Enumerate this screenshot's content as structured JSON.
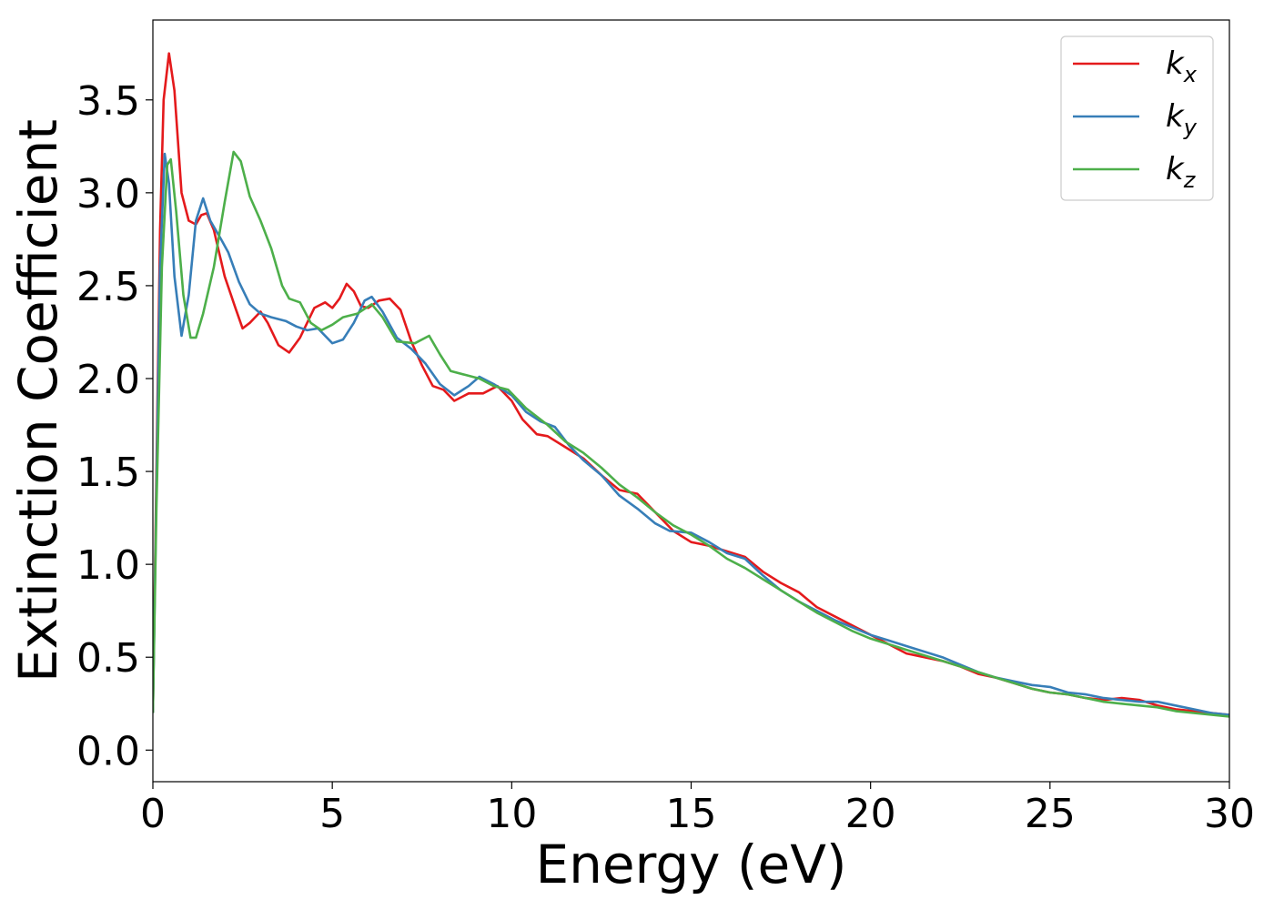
{
  "chart_data": {
    "type": "line",
    "title": "",
    "xlabel": "Energy (eV)",
    "ylabel": "Extinction Coefficient",
    "xlim": [
      0,
      30
    ],
    "ylim": [
      -0.17,
      3.93
    ],
    "xticks": [
      0,
      5,
      10,
      15,
      20,
      25,
      30
    ],
    "xtick_labels": [
      "0",
      "5",
      "10",
      "15",
      "20",
      "25",
      "30"
    ],
    "yticks": [
      0.0,
      0.5,
      1.0,
      1.5,
      2.0,
      2.5,
      3.0,
      3.5
    ],
    "ytick_labels": [
      "0.0",
      "0.5",
      "1.0",
      "1.5",
      "2.0",
      "2.5",
      "3.0",
      "3.5"
    ],
    "grid": false,
    "legend_position": "top-right",
    "series": [
      {
        "name": "k",
        "subscript": "x",
        "color": "#e41a1c",
        "points": [
          [
            0,
            0.2
          ],
          [
            0.1,
            1.5
          ],
          [
            0.2,
            2.8
          ],
          [
            0.3,
            3.5
          ],
          [
            0.45,
            3.75
          ],
          [
            0.6,
            3.55
          ],
          [
            0.8,
            3.0
          ],
          [
            1.0,
            2.85
          ],
          [
            1.2,
            2.83
          ],
          [
            1.35,
            2.88
          ],
          [
            1.5,
            2.89
          ],
          [
            1.7,
            2.8
          ],
          [
            2.0,
            2.55
          ],
          [
            2.3,
            2.38
          ],
          [
            2.5,
            2.27
          ],
          [
            2.7,
            2.3
          ],
          [
            3.0,
            2.36
          ],
          [
            3.2,
            2.3
          ],
          [
            3.5,
            2.18
          ],
          [
            3.8,
            2.14
          ],
          [
            4.1,
            2.22
          ],
          [
            4.5,
            2.38
          ],
          [
            4.8,
            2.41
          ],
          [
            5.0,
            2.38
          ],
          [
            5.2,
            2.43
          ],
          [
            5.4,
            2.51
          ],
          [
            5.6,
            2.47
          ],
          [
            5.8,
            2.39
          ],
          [
            6.0,
            2.38
          ],
          [
            6.3,
            2.42
          ],
          [
            6.6,
            2.43
          ],
          [
            6.9,
            2.37
          ],
          [
            7.2,
            2.2
          ],
          [
            7.5,
            2.07
          ],
          [
            7.8,
            1.96
          ],
          [
            8.1,
            1.94
          ],
          [
            8.4,
            1.88
          ],
          [
            8.8,
            1.92
          ],
          [
            9.2,
            1.92
          ],
          [
            9.6,
            1.96
          ],
          [
            10.0,
            1.88
          ],
          [
            10.3,
            1.78
          ],
          [
            10.7,
            1.7
          ],
          [
            11.0,
            1.69
          ],
          [
            11.5,
            1.63
          ],
          [
            12.0,
            1.57
          ],
          [
            12.5,
            1.48
          ],
          [
            13.0,
            1.4
          ],
          [
            13.5,
            1.38
          ],
          [
            14.0,
            1.28
          ],
          [
            14.5,
            1.18
          ],
          [
            15.0,
            1.12
          ],
          [
            15.5,
            1.1
          ],
          [
            16.0,
            1.07
          ],
          [
            16.5,
            1.04
          ],
          [
            17.0,
            0.96
          ],
          [
            17.5,
            0.9
          ],
          [
            18.0,
            0.85
          ],
          [
            18.5,
            0.77
          ],
          [
            19.0,
            0.72
          ],
          [
            19.5,
            0.67
          ],
          [
            20.0,
            0.62
          ],
          [
            20.5,
            0.57
          ],
          [
            21.0,
            0.52
          ],
          [
            21.5,
            0.5
          ],
          [
            22.0,
            0.48
          ],
          [
            22.5,
            0.45
          ],
          [
            23.0,
            0.41
          ],
          [
            23.5,
            0.39
          ],
          [
            24.0,
            0.36
          ],
          [
            24.5,
            0.33
          ],
          [
            25.0,
            0.31
          ],
          [
            25.5,
            0.3
          ],
          [
            26.0,
            0.28
          ],
          [
            26.5,
            0.27
          ],
          [
            27.0,
            0.28
          ],
          [
            27.5,
            0.27
          ],
          [
            28.0,
            0.24
          ],
          [
            28.5,
            0.22
          ],
          [
            29.0,
            0.21
          ],
          [
            29.5,
            0.2
          ],
          [
            30.0,
            0.19
          ]
        ]
      },
      {
        "name": "k",
        "subscript": "y",
        "color": "#377eb8",
        "points": [
          [
            0,
            0.2
          ],
          [
            0.1,
            1.4
          ],
          [
            0.2,
            2.6
          ],
          [
            0.33,
            3.21
          ],
          [
            0.45,
            3.05
          ],
          [
            0.6,
            2.55
          ],
          [
            0.8,
            2.23
          ],
          [
            1.0,
            2.45
          ],
          [
            1.2,
            2.85
          ],
          [
            1.4,
            2.97
          ],
          [
            1.6,
            2.85
          ],
          [
            1.9,
            2.75
          ],
          [
            2.1,
            2.68
          ],
          [
            2.4,
            2.52
          ],
          [
            2.7,
            2.4
          ],
          [
            3.0,
            2.35
          ],
          [
            3.3,
            2.33
          ],
          [
            3.7,
            2.31
          ],
          [
            4.0,
            2.28
          ],
          [
            4.3,
            2.26
          ],
          [
            4.6,
            2.27
          ],
          [
            5.0,
            2.19
          ],
          [
            5.3,
            2.21
          ],
          [
            5.6,
            2.3
          ],
          [
            5.9,
            2.42
          ],
          [
            6.1,
            2.44
          ],
          [
            6.4,
            2.36
          ],
          [
            6.8,
            2.22
          ],
          [
            7.2,
            2.16
          ],
          [
            7.6,
            2.08
          ],
          [
            8.0,
            1.97
          ],
          [
            8.4,
            1.91
          ],
          [
            8.8,
            1.96
          ],
          [
            9.1,
            2.01
          ],
          [
            9.5,
            1.97
          ],
          [
            10.0,
            1.91
          ],
          [
            10.4,
            1.82
          ],
          [
            10.8,
            1.77
          ],
          [
            11.2,
            1.74
          ],
          [
            11.6,
            1.64
          ],
          [
            12.0,
            1.56
          ],
          [
            12.5,
            1.48
          ],
          [
            13.0,
            1.37
          ],
          [
            13.5,
            1.3
          ],
          [
            14.0,
            1.22
          ],
          [
            14.4,
            1.18
          ],
          [
            15.0,
            1.17
          ],
          [
            15.5,
            1.12
          ],
          [
            16.0,
            1.06
          ],
          [
            16.5,
            1.03
          ],
          [
            17.0,
            0.94
          ],
          [
            17.5,
            0.86
          ],
          [
            18.0,
            0.8
          ],
          [
            18.5,
            0.75
          ],
          [
            19.0,
            0.7
          ],
          [
            19.5,
            0.66
          ],
          [
            20.0,
            0.62
          ],
          [
            20.5,
            0.59
          ],
          [
            21.0,
            0.56
          ],
          [
            21.5,
            0.53
          ],
          [
            22.0,
            0.5
          ],
          [
            22.5,
            0.46
          ],
          [
            23.0,
            0.42
          ],
          [
            23.5,
            0.39
          ],
          [
            24.0,
            0.37
          ],
          [
            24.5,
            0.35
          ],
          [
            25.0,
            0.34
          ],
          [
            25.5,
            0.31
          ],
          [
            26.0,
            0.3
          ],
          [
            26.5,
            0.28
          ],
          [
            27.0,
            0.27
          ],
          [
            27.5,
            0.26
          ],
          [
            28.0,
            0.26
          ],
          [
            28.5,
            0.24
          ],
          [
            29.0,
            0.22
          ],
          [
            29.5,
            0.2
          ],
          [
            30.0,
            0.19
          ]
        ]
      },
      {
        "name": "k",
        "subscript": "z",
        "color": "#4daf4a",
        "points": [
          [
            0,
            0.2
          ],
          [
            0.1,
            1.3
          ],
          [
            0.25,
            2.6
          ],
          [
            0.4,
            3.15
          ],
          [
            0.5,
            3.18
          ],
          [
            0.65,
            2.9
          ],
          [
            0.85,
            2.45
          ],
          [
            1.05,
            2.22
          ],
          [
            1.2,
            2.22
          ],
          [
            1.4,
            2.35
          ],
          [
            1.7,
            2.6
          ],
          [
            2.0,
            2.95
          ],
          [
            2.25,
            3.22
          ],
          [
            2.45,
            3.17
          ],
          [
            2.7,
            2.98
          ],
          [
            3.0,
            2.85
          ],
          [
            3.3,
            2.7
          ],
          [
            3.6,
            2.5
          ],
          [
            3.8,
            2.43
          ],
          [
            4.1,
            2.41
          ],
          [
            4.4,
            2.3
          ],
          [
            4.7,
            2.26
          ],
          [
            5.0,
            2.29
          ],
          [
            5.3,
            2.33
          ],
          [
            5.7,
            2.35
          ],
          [
            6.1,
            2.4
          ],
          [
            6.4,
            2.33
          ],
          [
            6.8,
            2.2
          ],
          [
            7.3,
            2.19
          ],
          [
            7.7,
            2.23
          ],
          [
            8.0,
            2.13
          ],
          [
            8.3,
            2.04
          ],
          [
            8.7,
            2.02
          ],
          [
            9.1,
            2.0
          ],
          [
            9.5,
            1.96
          ],
          [
            9.9,
            1.94
          ],
          [
            10.4,
            1.84
          ],
          [
            11.0,
            1.75
          ],
          [
            11.5,
            1.66
          ],
          [
            12.0,
            1.6
          ],
          [
            12.5,
            1.52
          ],
          [
            13.0,
            1.43
          ],
          [
            13.5,
            1.36
          ],
          [
            14.0,
            1.28
          ],
          [
            14.5,
            1.21
          ],
          [
            15.0,
            1.16
          ],
          [
            15.5,
            1.1
          ],
          [
            16.0,
            1.03
          ],
          [
            16.5,
            0.98
          ],
          [
            17.0,
            0.92
          ],
          [
            17.5,
            0.86
          ],
          [
            18.0,
            0.8
          ],
          [
            18.5,
            0.74
          ],
          [
            19.0,
            0.69
          ],
          [
            19.5,
            0.64
          ],
          [
            20.0,
            0.6
          ],
          [
            20.5,
            0.57
          ],
          [
            21.0,
            0.54
          ],
          [
            21.5,
            0.51
          ],
          [
            22.0,
            0.48
          ],
          [
            22.5,
            0.45
          ],
          [
            23.0,
            0.42
          ],
          [
            23.5,
            0.39
          ],
          [
            24.0,
            0.36
          ],
          [
            24.5,
            0.33
          ],
          [
            25.0,
            0.31
          ],
          [
            25.5,
            0.3
          ],
          [
            26.0,
            0.28
          ],
          [
            26.5,
            0.26
          ],
          [
            27.0,
            0.25
          ],
          [
            27.5,
            0.24
          ],
          [
            28.0,
            0.23
          ],
          [
            28.5,
            0.21
          ],
          [
            29.0,
            0.2
          ],
          [
            29.5,
            0.19
          ],
          [
            30.0,
            0.18
          ]
        ]
      }
    ]
  }
}
